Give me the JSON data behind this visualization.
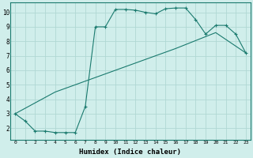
{
  "line1_x": [
    0,
    1,
    2,
    3,
    4,
    5,
    6,
    7,
    8,
    9,
    10,
    11,
    12,
    13,
    14,
    15,
    16,
    17,
    18,
    19,
    20,
    21,
    22,
    23
  ],
  "line1_y": [
    3.0,
    2.5,
    1.8,
    1.8,
    1.7,
    1.7,
    1.7,
    3.5,
    9.0,
    9.0,
    10.2,
    10.2,
    10.15,
    10.0,
    9.9,
    10.25,
    10.3,
    10.3,
    9.5,
    8.5,
    9.1,
    9.1,
    8.5,
    7.2
  ],
  "line2_x": [
    0,
    4,
    8,
    12,
    16,
    20,
    23
  ],
  "line2_y": [
    3.0,
    4.5,
    5.5,
    6.5,
    7.5,
    8.6,
    7.2
  ],
  "line_color": "#1a7a6e",
  "bg_color": "#d0eeeb",
  "grid_color": "#b0d8d4",
  "xlabel": "Humidex (Indice chaleur)",
  "xlim": [
    -0.5,
    23.5
  ],
  "ylim": [
    1.2,
    10.7
  ],
  "yticks": [
    2,
    3,
    4,
    5,
    6,
    7,
    8,
    9,
    10
  ],
  "xticks": [
    0,
    1,
    2,
    3,
    4,
    5,
    6,
    7,
    8,
    9,
    10,
    11,
    12,
    13,
    14,
    15,
    16,
    17,
    18,
    19,
    20,
    21,
    22,
    23
  ]
}
